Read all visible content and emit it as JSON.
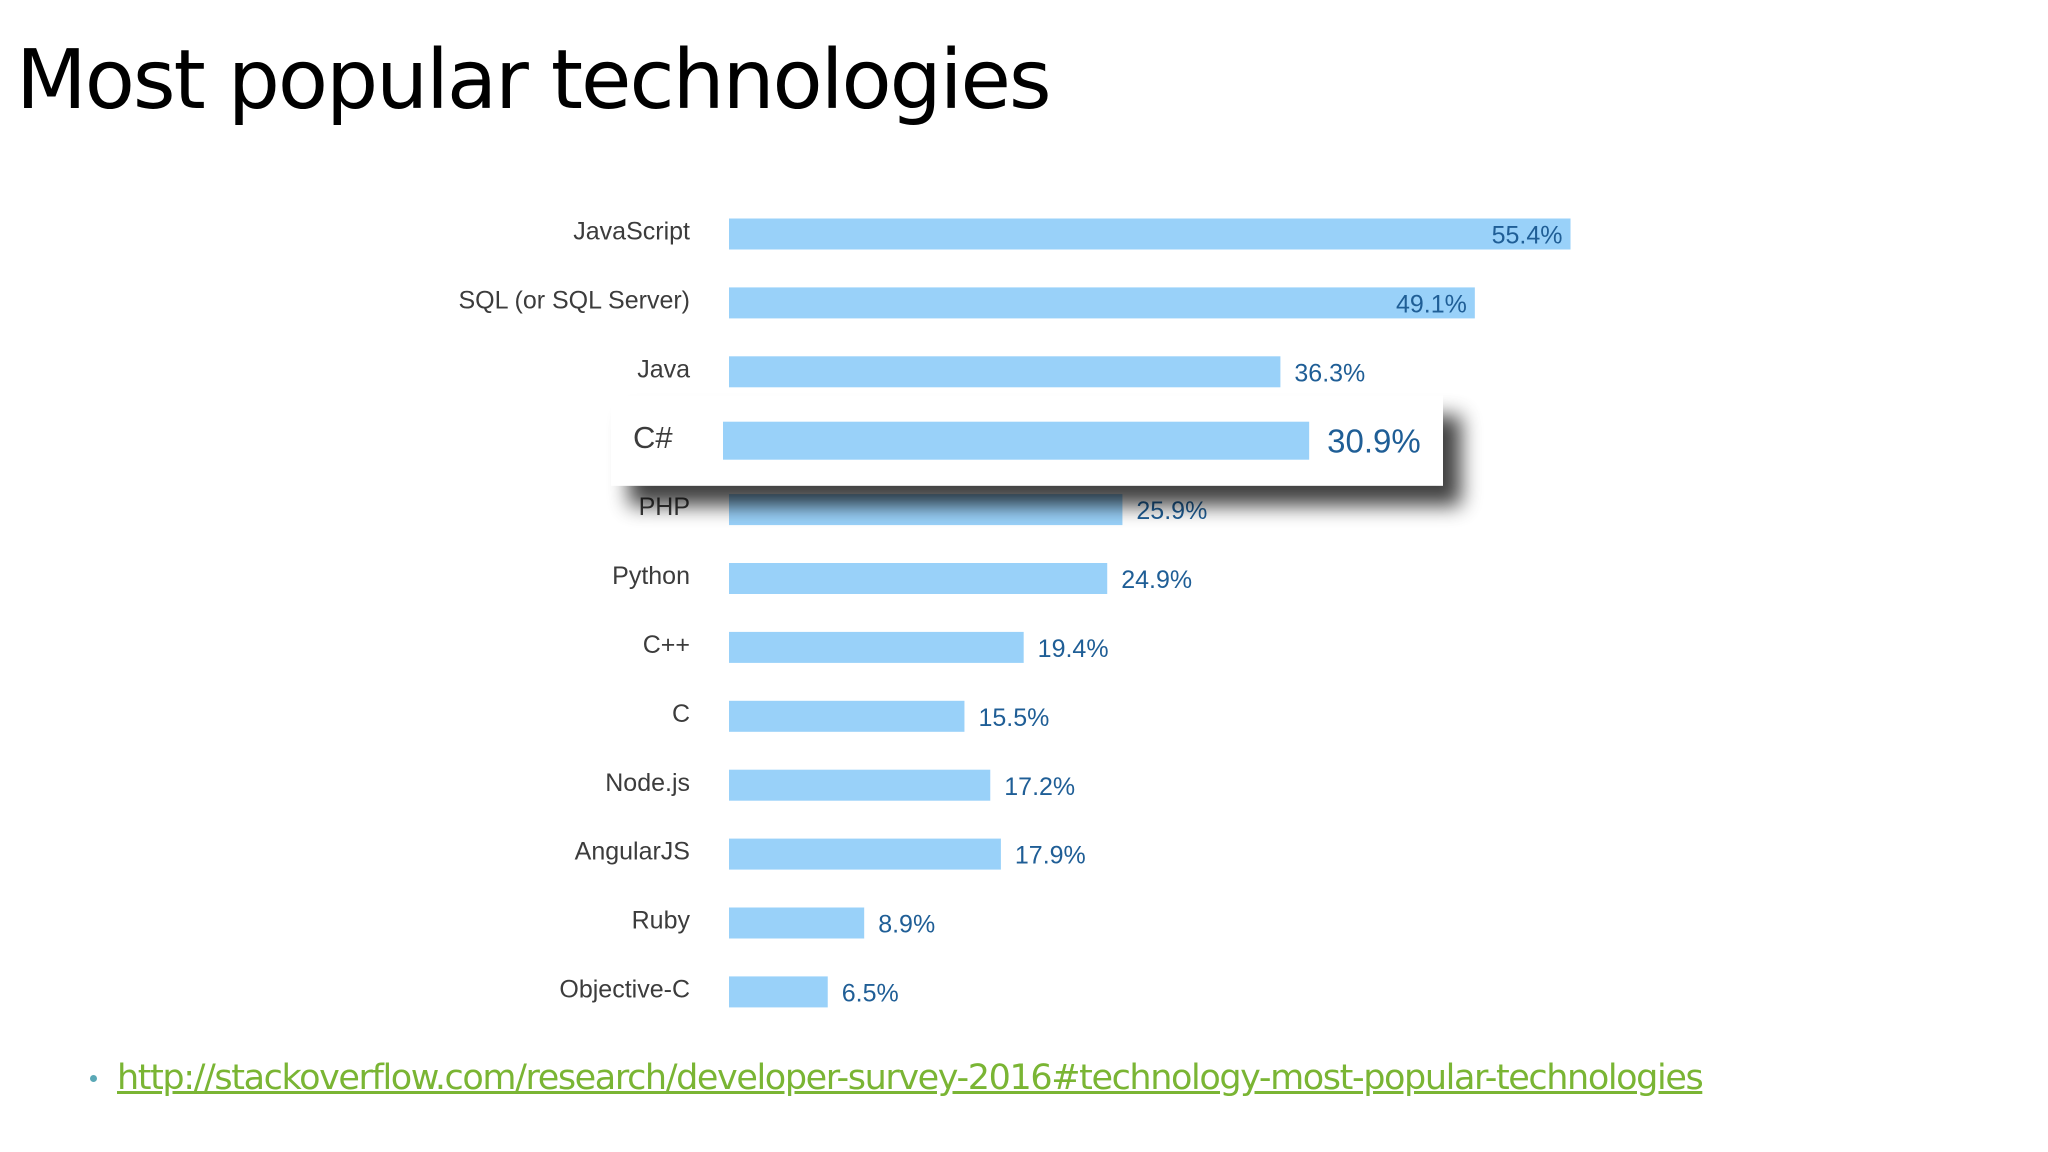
{
  "slide": {
    "title": "Most popular technologies",
    "source_link": "http://stackoverflow.com/research/developer-survey-2016#technology-most-popular-technologies"
  },
  "colors": {
    "bar": "#99d1f9",
    "value_label": "#1f5e96",
    "category_label": "#3c3c3c",
    "link": "#7ab534",
    "bullet": "#5aa8b6"
  },
  "chart_data": {
    "type": "bar",
    "orientation": "horizontal",
    "categories": [
      "JavaScript",
      "SQL (or SQL Server)",
      "Java",
      "C#",
      "PHP",
      "Python",
      "C++",
      "C",
      "Node.js",
      "AngularJS",
      "Ruby",
      "Objective-C"
    ],
    "values": [
      55.4,
      49.1,
      36.3,
      30.9,
      25.9,
      24.9,
      19.4,
      15.5,
      17.2,
      17.9,
      8.9,
      6.5
    ],
    "value_labels": [
      "55.4%",
      "49.1%",
      "36.3%",
      "30.9%",
      "25.9%",
      "24.9%",
      "19.4%",
      "15.5%",
      "17.2%",
      "17.9%",
      "8.9%",
      "6.5%"
    ],
    "highlighted": "C#",
    "unit": "%",
    "grid": false,
    "legend": "none"
  }
}
